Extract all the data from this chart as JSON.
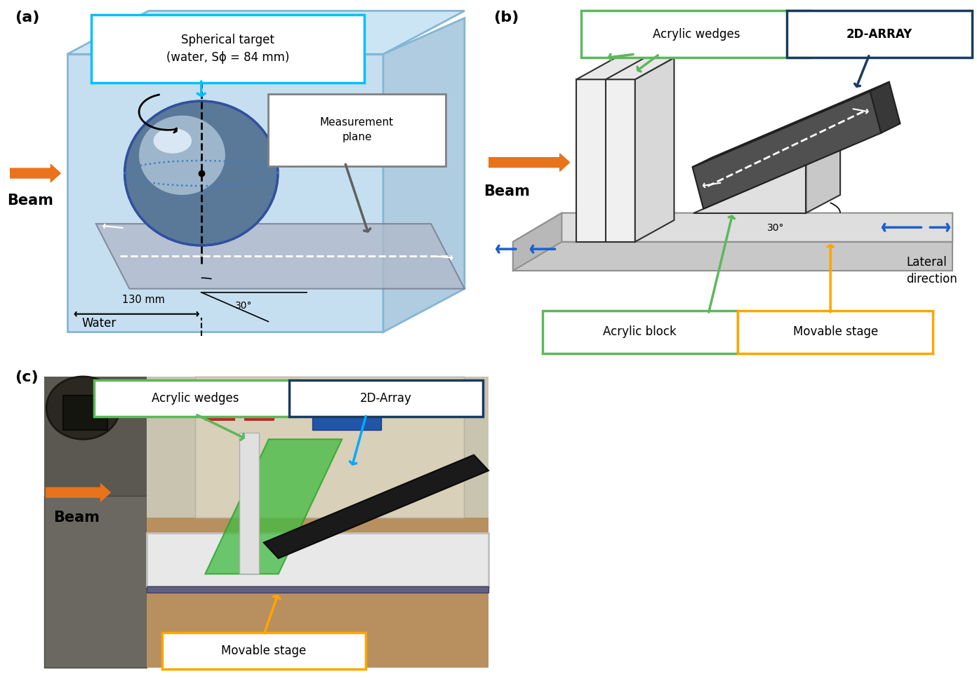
{
  "panel_a": {
    "label": "(a)",
    "title_box_text": "Spherical target\n(water, Sϕ = 84 mm)",
    "title_box_border": "#00bfff",
    "measurement_box_text": "Measurement\nplane",
    "measurement_box_border": "#808080",
    "beam_text": "Beam",
    "beam_color": "#e8731a",
    "water_text": "Water",
    "dim_text": "130 mm",
    "angle_text": "30°"
  },
  "panel_b": {
    "label": "(b)",
    "acrylic_wedges_box_text": "Acrylic wedges",
    "acrylic_wedges_border": "#5cb85c",
    "array_box_text": "2D-ARRAY",
    "array_box_border": "#1a3a5f",
    "acrylic_block_box_text": "Acrylic block",
    "acrylic_block_border": "#5cb85c",
    "movable_stage_box_text": "Movable stage",
    "movable_stage_border": "#ffa500",
    "lateral_text": "Lateral\ndirection",
    "beam_text": "Beam",
    "beam_color": "#e8731a",
    "angle_text": "30°",
    "blue_arrow_color": "#1e5fcc",
    "green_arrow_color": "#5cb85c",
    "dark_arrow_color": "#1a3a5f",
    "yellow_arrow_color": "#ffa500"
  },
  "panel_c": {
    "label": "(c)",
    "acrylic_wedges_box_text": "Acrylic wedges",
    "acrylic_wedges_border": "#5cb85c",
    "array_box_text": "2D-Array",
    "array_box_border": "#1a3a5f",
    "movable_stage_box_text": "Movable stage",
    "movable_stage_border": "#ffa500",
    "beam_text": "Beam",
    "beam_color": "#e8731a",
    "green_arrow_color": "#5cb85c",
    "blue_arrow_color": "#00aaff",
    "yellow_arrow_color": "#ffa500"
  },
  "bg_color": "#ffffff"
}
